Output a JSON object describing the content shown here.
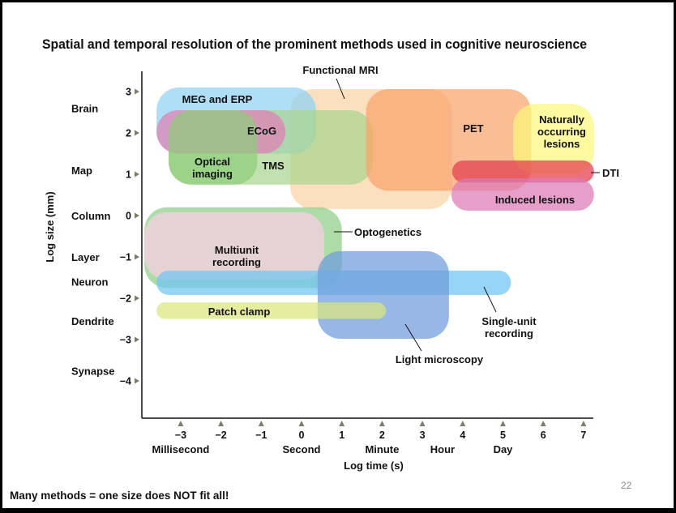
{
  "slide": {
    "footer": "Many methods = one size does NOT fit all!",
    "page_number": "22"
  },
  "chart_data": {
    "type": "area",
    "title": "Spatial and temporal resolution of the prominent methods used in cognitive neuroscience",
    "xlabel": "Log time (s)",
    "ylabel": "Log size (mm)",
    "xlim": [
      -4,
      7.2
    ],
    "ylim": [
      -5,
      3.5
    ],
    "x_ticks": [
      "-3",
      "-2",
      "-1",
      "0",
      "1",
      "2",
      "3",
      "4",
      "5",
      "6",
      "7"
    ],
    "x_tick_values": [
      -3,
      -2,
      -1,
      0,
      1,
      2,
      3,
      4,
      5,
      6,
      7
    ],
    "y_ticks": [
      "3",
      "2",
      "1",
      "0",
      "-1",
      "-2",
      "-3",
      "-4"
    ],
    "y_tick_values": [
      3,
      2,
      1,
      0,
      -1,
      -2,
      -3,
      -4
    ],
    "x_named": [
      {
        "label": "Millisecond",
        "value": -3
      },
      {
        "label": "Second",
        "value": 0
      },
      {
        "label": "Minute",
        "value": 2
      },
      {
        "label": "Hour",
        "value": 3.5
      },
      {
        "label": "Day",
        "value": 5
      }
    ],
    "y_named": [
      {
        "label": "Brain",
        "value": 2.6
      },
      {
        "label": "Map",
        "value": 1.1
      },
      {
        "label": "Column",
        "value": 0
      },
      {
        "label": "Layer",
        "value": -1
      },
      {
        "label": "Neuron",
        "value": -1.6
      },
      {
        "label": "Dendrite",
        "value": -2.55
      },
      {
        "label": "Synapse",
        "value": -3.75
      }
    ],
    "grid": false,
    "regions": [
      {
        "name": "Functional MRI",
        "x": [
          -0.28,
          3.74
        ],
        "y": [
          0.16,
          3.06
        ],
        "color": "#fbd3a6"
      },
      {
        "name": "MEG and ERP",
        "x": [
          -3.6,
          0.36
        ],
        "y": [
          1.5,
          3.1
        ],
        "color": "#8fd3f4"
      },
      {
        "name": "TMS",
        "x": [
          -3.3,
          1.77
        ],
        "y": [
          0.75,
          2.55
        ],
        "color": "#a9d68f"
      },
      {
        "name": "ECoG",
        "x": [
          -3.6,
          -0.4
        ],
        "y": [
          1.5,
          2.55
        ],
        "color": "#e27fb5"
      },
      {
        "name": "Optical imaging",
        "x": [
          -3.3,
          -1.1
        ],
        "y": [
          0.75,
          2.55
        ],
        "color": "#8fcc7c"
      },
      {
        "name": "PET",
        "x": [
          1.6,
          5.7
        ],
        "y": [
          0.6,
          3.06
        ],
        "color": "#f9a36a"
      },
      {
        "name": "Naturally occurring lesions",
        "x": [
          5.25,
          7.26
        ],
        "y": [
          1.0,
          2.7
        ],
        "color": "#fbf77c"
      },
      {
        "name": "DTI",
        "x": [
          3.74,
          7.26
        ],
        "y": [
          0.8,
          1.33
        ],
        "color": "#e33a4e"
      },
      {
        "name": "Induced lesions",
        "x": [
          3.72,
          7.26
        ],
        "y": [
          0.12,
          0.9
        ],
        "color": "#dd78b7"
      },
      {
        "name": "Optogenetics",
        "x": [
          -3.9,
          1.0
        ],
        "y": [
          -1.75,
          0.2
        ],
        "color": "#8fcf86"
      },
      {
        "name": "Multiunit recording",
        "x": [
          -3.9,
          0.56
        ],
        "y": [
          -1.55,
          0.08
        ],
        "color": "#fbcfe6"
      },
      {
        "name": "Single-unit recording",
        "x": [
          -3.6,
          5.2
        ],
        "y": [
          -1.92,
          -1.33
        ],
        "color": "#6fc5f2"
      },
      {
        "name": "Light microscopy",
        "x": [
          0.4,
          3.66
        ],
        "y": [
          -2.98,
          -0.86
        ],
        "color": "#6f9ddc"
      },
      {
        "name": "Patch clamp",
        "x": [
          -3.6,
          2.1
        ],
        "y": [
          -2.5,
          -2.1
        ],
        "color": "#d9e67c"
      }
    ]
  }
}
